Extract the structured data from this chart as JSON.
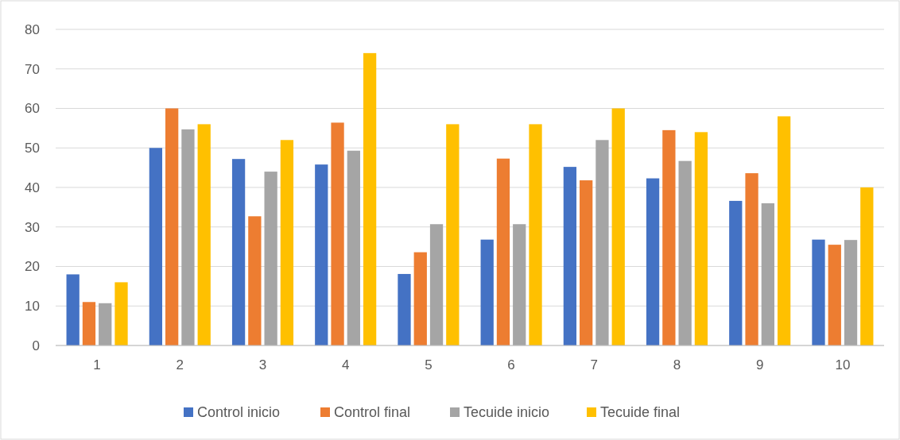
{
  "chart_data": {
    "type": "bar",
    "categories": [
      "1",
      "2",
      "3",
      "4",
      "5",
      "6",
      "7",
      "8",
      "9",
      "10"
    ],
    "series": [
      {
        "name": "Control inicio",
        "color": "#4472c4",
        "values": [
          18,
          50,
          47.2,
          45.8,
          18.1,
          26.8,
          45.2,
          42.3,
          36.6,
          26.8
        ]
      },
      {
        "name": "Control final",
        "color": "#ed7d31",
        "values": [
          11,
          60,
          32.7,
          56.4,
          23.6,
          47.3,
          41.8,
          54.5,
          43.6,
          25.5
        ]
      },
      {
        "name": "Tecuide inicio",
        "color": "#a5a5a5",
        "values": [
          10.7,
          54.7,
          44,
          49.3,
          30.7,
          30.7,
          52,
          46.7,
          36,
          26.7
        ]
      },
      {
        "name": "Tecuide final",
        "color": "#ffc000",
        "values": [
          16,
          56,
          52,
          74,
          56,
          56,
          60,
          54,
          58,
          40
        ]
      }
    ],
    "ylim": [
      0,
      80
    ],
    "yticks": [
      0,
      10,
      20,
      30,
      40,
      50,
      60,
      70,
      80
    ],
    "grid": "y",
    "legend": "bottom"
  }
}
